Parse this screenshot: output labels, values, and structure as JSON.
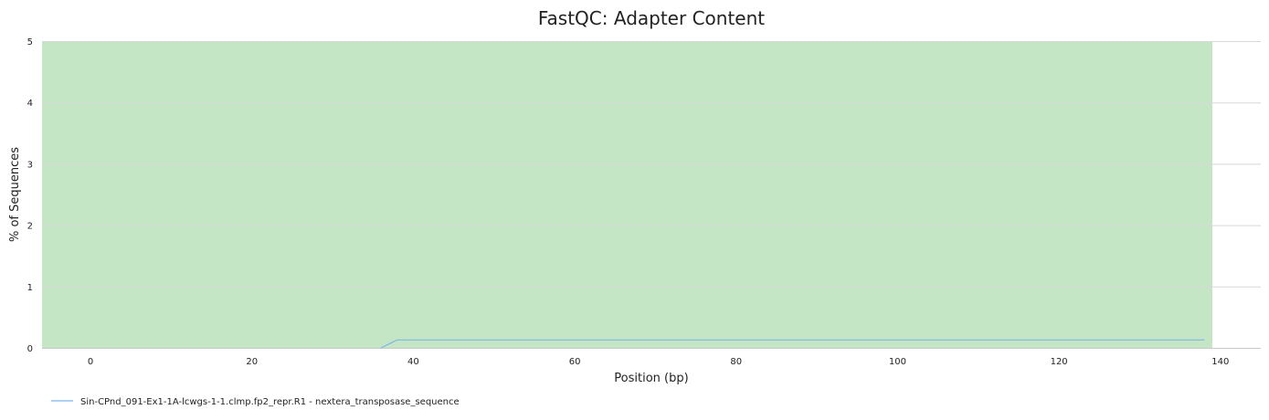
{
  "chart_data": {
    "type": "line",
    "title": "FastQC: Adapter Content",
    "xlabel": "Position (bp)",
    "ylabel": "% of Sequences",
    "xlim": [
      -6,
      145
    ],
    "ylim": [
      0,
      5
    ],
    "x_ticks": [
      0,
      20,
      40,
      60,
      80,
      100,
      120,
      140
    ],
    "y_ticks": [
      0,
      1,
      2,
      3,
      4,
      5
    ],
    "grid": "horizontal",
    "legend_position": "bottom-left",
    "band": {
      "y_from": 0,
      "y_to": 5,
      "x_from": -6,
      "x_to": 139,
      "color": "#c4e6c4"
    },
    "series": [
      {
        "name": "Sin-CPnd_091-Ex1-1A-lcwgs-1-1.clmp.fp2_repr.R1 - nextera_transposase_sequence",
        "color": "#7cb5ec",
        "x": [
          36,
          38,
          40,
          50,
          60,
          70,
          80,
          90,
          100,
          110,
          120,
          130,
          138
        ],
        "y": [
          0,
          0.13,
          0.13,
          0.13,
          0.13,
          0.13,
          0.13,
          0.13,
          0.13,
          0.13,
          0.13,
          0.13,
          0.13
        ]
      }
    ]
  }
}
